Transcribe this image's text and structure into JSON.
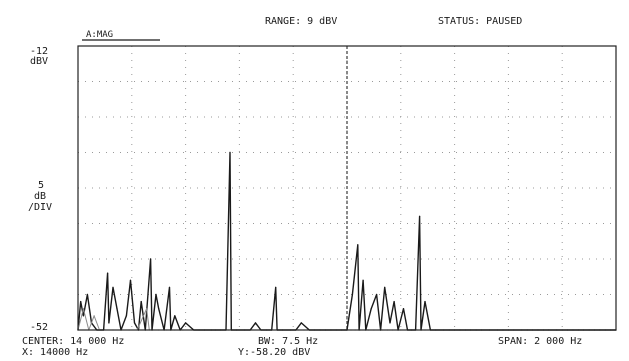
{
  "header": {
    "range": "RANGE: 9 dBV",
    "status": "STATUS: PAUSED",
    "trace": "A:MAG"
  },
  "axis": {
    "top_value": "-12",
    "top_unit": "dBV",
    "scale_value": "5",
    "scale_unit": "dB",
    "scale_per": "/DIV",
    "bottom_value": "-52"
  },
  "footer": {
    "center": "CENTER: 14 000 Hz",
    "bw": "BW: 7.5 Hz",
    "span": "SPAN: 2 000 Hz",
    "x_marker": "X: 14000 Hz",
    "y_marker": "Y:-58.20 dBV"
  },
  "colors": {
    "background": "#ffffff",
    "trace": "#1a1a1a",
    "trace_light": "#8a8a8a",
    "grid": "#9a9a9a",
    "frame": "#222222"
  },
  "chart_data": {
    "type": "line",
    "title": "",
    "xlabel": "",
    "ylabel": "dBV",
    "xlim": [
      13000,
      15000
    ],
    "ylim": [
      -52,
      -12
    ],
    "grid": true,
    "divisions": {
      "x": 10,
      "y": 8
    },
    "marker_x": 14000,
    "series": [
      {
        "color": "#1a1a1a",
        "points": [
          [
            13000,
            -52
          ],
          [
            13010,
            -48
          ],
          [
            13020,
            -50
          ],
          [
            13035,
            -47
          ],
          [
            13050,
            -51
          ],
          [
            13070,
            -52
          ],
          [
            13095,
            -52
          ],
          [
            13110,
            -44
          ],
          [
            13115,
            -51
          ],
          [
            13130,
            -46
          ],
          [
            13145,
            -49
          ],
          [
            13160,
            -52
          ],
          [
            13180,
            -50
          ],
          [
            13195,
            -45
          ],
          [
            13210,
            -51
          ],
          [
            13225,
            -52
          ],
          [
            13235,
            -48
          ],
          [
            13250,
            -52
          ],
          [
            13270,
            -42
          ],
          [
            13275,
            -52
          ],
          [
            13290,
            -47
          ],
          [
            13300,
            -49
          ],
          [
            13320,
            -52
          ],
          [
            13340,
            -46
          ],
          [
            13345,
            -52
          ],
          [
            13360,
            -50
          ],
          [
            13380,
            -52
          ],
          [
            13400,
            -51
          ],
          [
            13430,
            -52
          ],
          [
            13450,
            -52
          ],
          [
            13470,
            -52
          ],
          [
            13495,
            -52
          ],
          [
            13510,
            -52
          ],
          [
            13530,
            -52
          ],
          [
            13550,
            -52
          ],
          [
            13565,
            -27
          ],
          [
            13570,
            -52
          ],
          [
            13590,
            -52
          ],
          [
            13620,
            -52
          ],
          [
            13640,
            -52
          ],
          [
            13660,
            -51
          ],
          [
            13680,
            -52
          ],
          [
            13700,
            -52
          ],
          [
            13720,
            -52
          ],
          [
            13735,
            -46
          ],
          [
            13740,
            -52
          ],
          [
            13760,
            -52
          ],
          [
            13790,
            -52
          ],
          [
            13810,
            -52
          ],
          [
            13830,
            -51
          ],
          [
            13860,
            -52
          ],
          [
            13880,
            -52
          ],
          [
            13900,
            -52
          ],
          [
            13920,
            -52
          ],
          [
            13940,
            -52
          ],
          [
            13960,
            -52
          ],
          [
            13980,
            -52
          ],
          [
            14000,
            -52
          ],
          [
            14020,
            -47
          ],
          [
            14040,
            -40
          ],
          [
            14045,
            -52
          ],
          [
            14060,
            -45
          ],
          [
            14070,
            -52
          ],
          [
            14090,
            -49
          ],
          [
            14110,
            -47
          ],
          [
            14125,
            -52
          ],
          [
            14140,
            -46
          ],
          [
            14160,
            -51
          ],
          [
            14175,
            -48
          ],
          [
            14190,
            -52
          ],
          [
            14210,
            -49
          ],
          [
            14225,
            -52
          ],
          [
            14240,
            -52
          ],
          [
            14255,
            -52
          ],
          [
            14270,
            -36
          ],
          [
            14275,
            -52
          ],
          [
            14290,
            -48
          ],
          [
            14310,
            -52
          ],
          [
            14330,
            -52
          ],
          [
            14360,
            -52
          ],
          [
            14380,
            -52
          ],
          [
            14400,
            -52
          ],
          [
            14420,
            -52
          ],
          [
            14440,
            -52
          ],
          [
            14460,
            -52
          ],
          [
            14480,
            -52
          ],
          [
            14500,
            -52
          ],
          [
            14530,
            -52
          ],
          [
            14560,
            -52
          ],
          [
            14580,
            -52
          ],
          [
            14600,
            -52
          ],
          [
            14620,
            -52
          ],
          [
            14650,
            -52
          ],
          [
            14670,
            -52
          ],
          [
            14690,
            -52
          ],
          [
            14710,
            -52
          ],
          [
            14730,
            -52
          ],
          [
            14750,
            -52
          ],
          [
            14780,
            -52
          ],
          [
            14800,
            -52
          ],
          [
            14820,
            -52
          ],
          [
            14840,
            -52
          ],
          [
            14860,
            -52
          ],
          [
            14880,
            -52
          ],
          [
            14900,
            -52
          ],
          [
            14920,
            -52
          ],
          [
            14940,
            -52
          ],
          [
            14960,
            -52
          ],
          [
            14980,
            -52
          ],
          [
            15000,
            -52
          ]
        ]
      },
      {
        "color": "#8a8a8a",
        "points": [
          [
            13000,
            -52
          ],
          [
            13020,
            -49
          ],
          [
            13040,
            -52
          ],
          [
            13060,
            -50
          ],
          [
            13080,
            -52
          ],
          [
            13100,
            -52
          ],
          [
            13130,
            -52
          ],
          [
            13160,
            -52
          ],
          [
            13190,
            -52
          ],
          [
            13220,
            -52
          ],
          [
            13255,
            -49
          ],
          [
            13265,
            -52
          ],
          [
            13300,
            -52
          ],
          [
            13330,
            -52
          ],
          [
            13360,
            -52
          ],
          [
            13390,
            -52
          ],
          [
            13420,
            -52
          ],
          [
            13450,
            -52
          ],
          [
            13480,
            -52
          ],
          [
            13500,
            -52
          ],
          [
            13530,
            -52
          ],
          [
            13560,
            -52
          ],
          [
            13600,
            -52
          ],
          [
            13640,
            -52
          ],
          [
            13680,
            -52
          ],
          [
            13700,
            -52
          ],
          [
            13720,
            -52
          ],
          [
            13750,
            -52
          ],
          [
            13780,
            -52
          ],
          [
            13800,
            -52
          ],
          [
            13820,
            -52
          ],
          [
            13840,
            -52
          ],
          [
            13860,
            -52
          ],
          [
            13880,
            -52
          ],
          [
            13900,
            -52
          ],
          [
            13920,
            -52
          ],
          [
            13940,
            -52
          ],
          [
            13960,
            -52
          ],
          [
            13980,
            -52
          ],
          [
            14000,
            -52
          ],
          [
            14015,
            -52
          ],
          [
            14030,
            -52
          ],
          [
            14050,
            -52
          ],
          [
            14080,
            -52
          ],
          [
            14100,
            -52
          ],
          [
            14130,
            -52
          ],
          [
            14150,
            -52
          ],
          [
            14170,
            -52
          ],
          [
            14200,
            -52
          ],
          [
            14230,
            -52
          ],
          [
            14260,
            -52
          ],
          [
            14290,
            -52
          ],
          [
            14320,
            -52
          ],
          [
            14350,
            -52
          ],
          [
            14380,
            -52
          ],
          [
            14410,
            -52
          ],
          [
            14440,
            -52
          ],
          [
            14470,
            -52
          ],
          [
            14500,
            -52
          ],
          [
            14530,
            -52
          ],
          [
            14560,
            -52
          ],
          [
            14590,
            -52
          ],
          [
            14620,
            -52
          ],
          [
            14650,
            -52
          ],
          [
            14680,
            -52
          ],
          [
            14710,
            -52
          ],
          [
            14740,
            -52
          ],
          [
            14770,
            -52
          ],
          [
            14800,
            -52
          ],
          [
            14830,
            -52
          ],
          [
            14860,
            -52
          ],
          [
            14890,
            -52
          ],
          [
            14920,
            -52
          ],
          [
            14950,
            -52
          ],
          [
            14980,
            -52
          ],
          [
            15000,
            -52
          ]
        ]
      }
    ]
  }
}
